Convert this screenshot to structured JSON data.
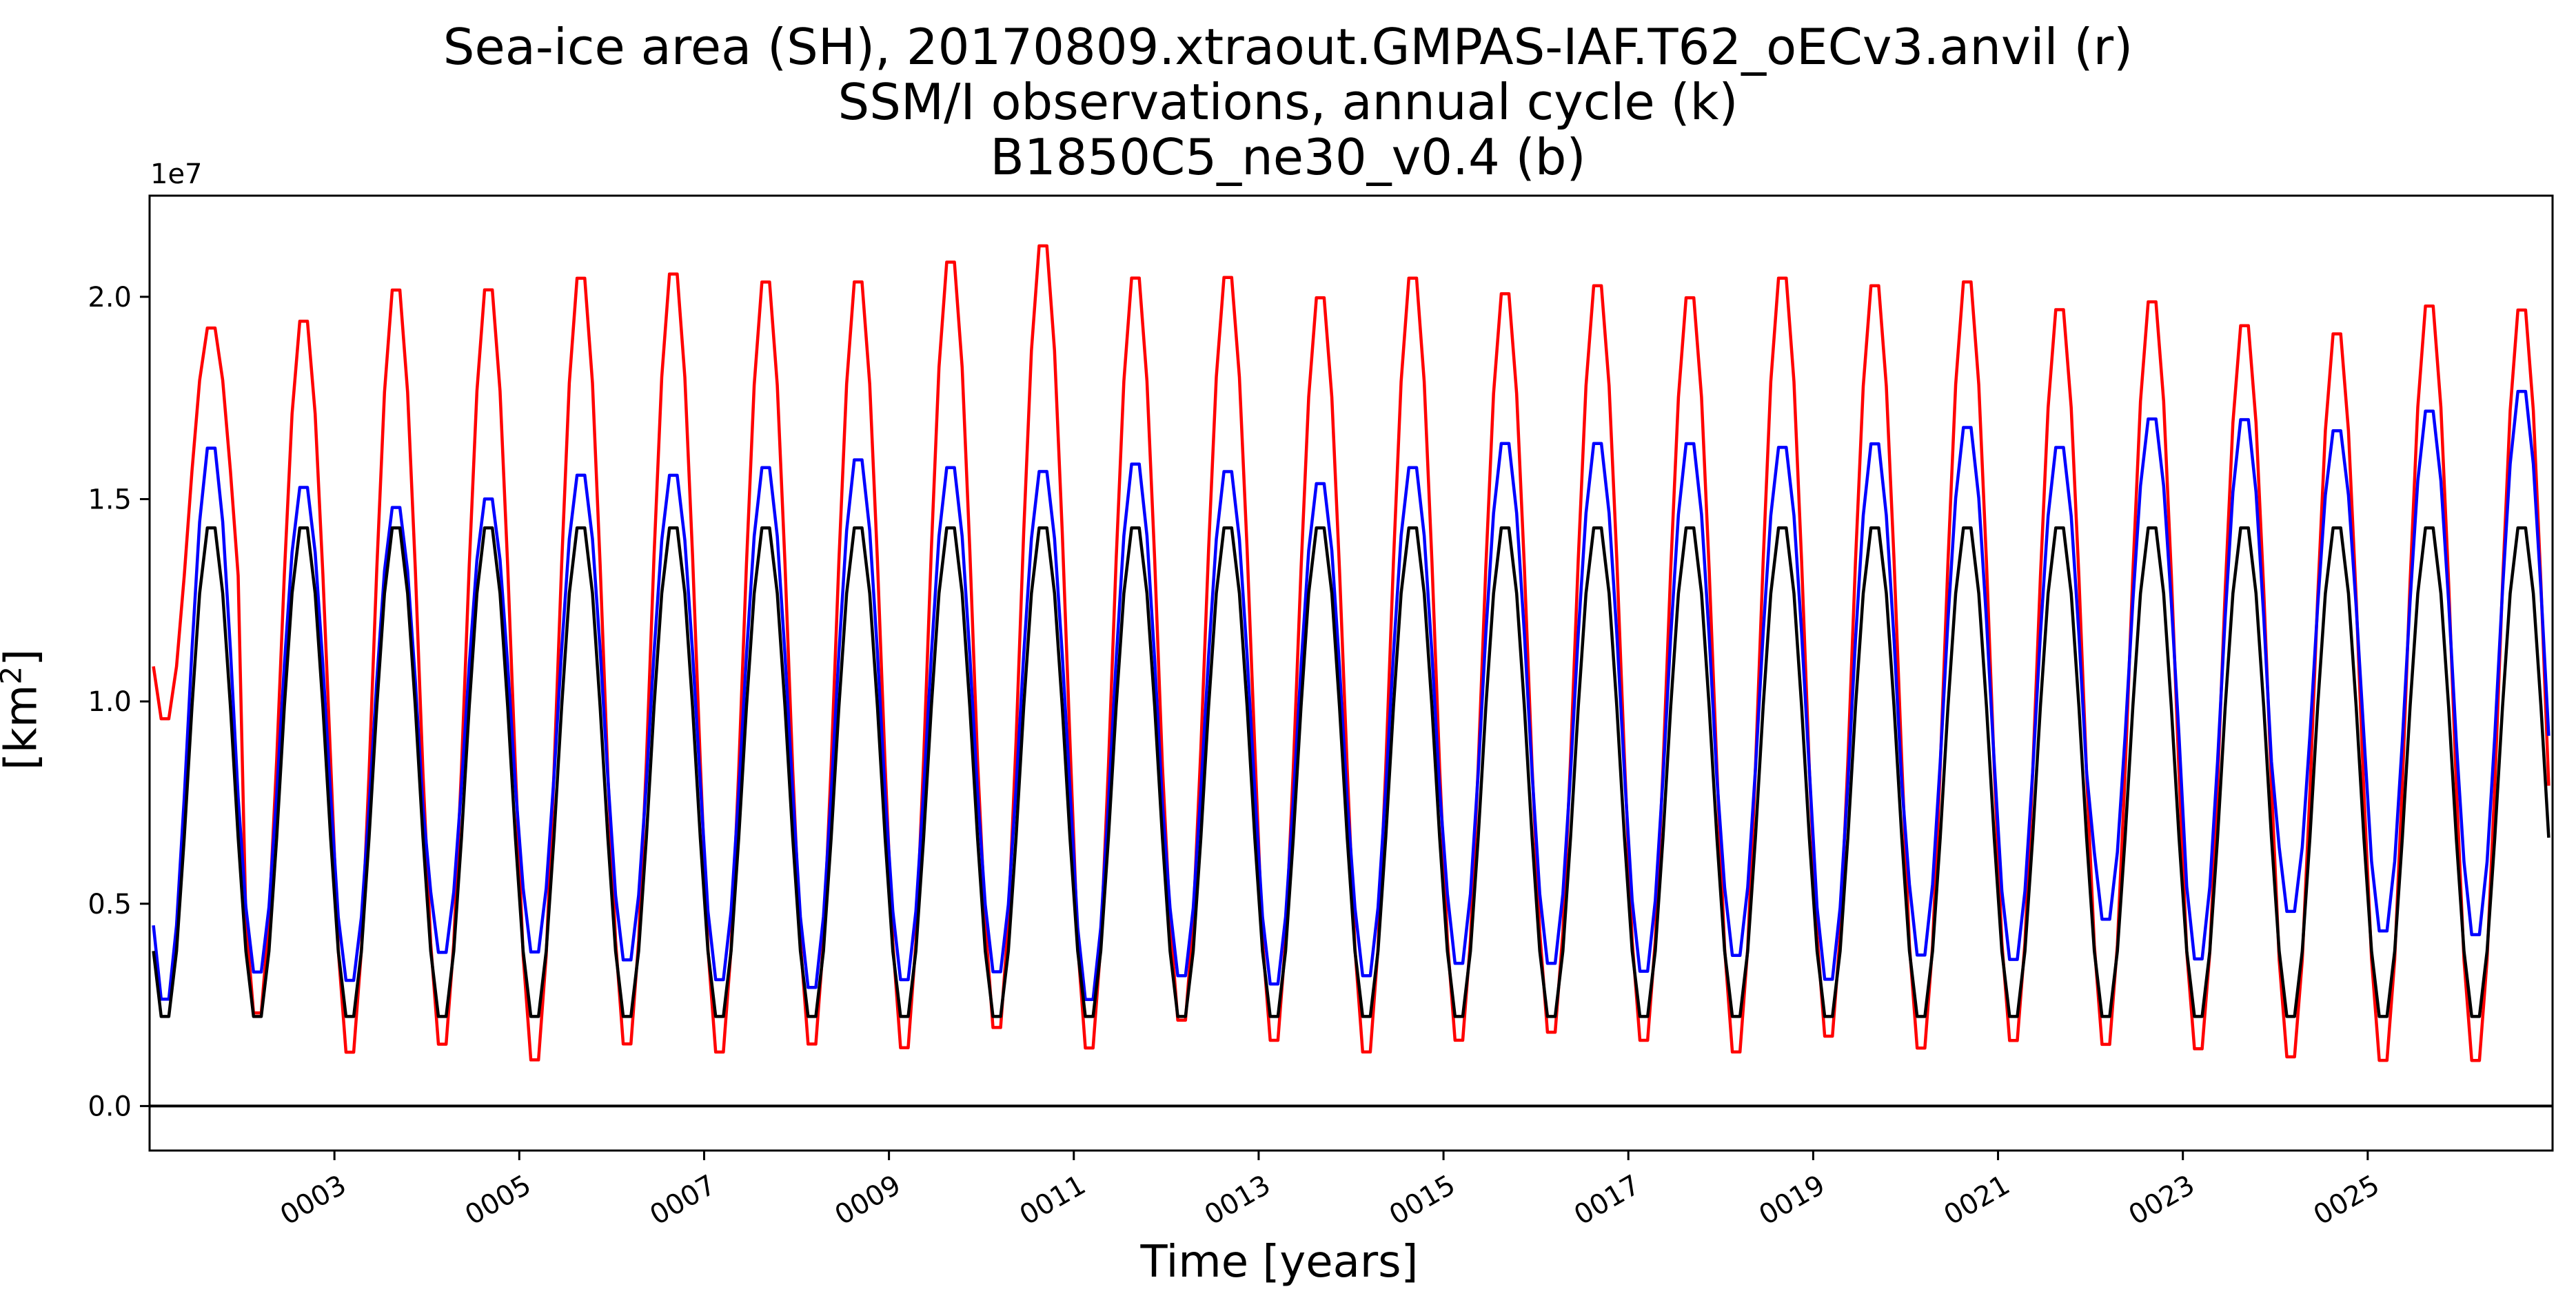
{
  "chart_data": {
    "type": "line",
    "title_lines": [
      "Sea-ice area (SH), 20170809.xtraout.GMPAS-IAF.T62_oECv3.anvil (r)",
      "SSM/I observations, annual cycle (k)",
      "B1850C5_ne30_v0.4 (b)"
    ],
    "xlabel": "Time [years]",
    "ylabel_base": "[km",
    "ylabel_sup": "2",
    "ylabel_close": "]",
    "y_offset_text": "1e7",
    "x_ticks": [
      3,
      5,
      7,
      9,
      11,
      13,
      15,
      17,
      19,
      21,
      23,
      25
    ],
    "x_tick_labels": [
      "0003",
      "0005",
      "0007",
      "0009",
      "0011",
      "0013",
      "0015",
      "0017",
      "0019",
      "0021",
      "0023",
      "0025"
    ],
    "y_ticks": [
      0.0,
      0.5,
      1.0,
      1.5,
      2.0
    ],
    "y_tick_labels": [
      "0.0",
      "0.5",
      "1.0",
      "1.5",
      "2.0"
    ],
    "xlim": [
      1.0,
      27.0
    ],
    "ylim": [
      -0.11,
      2.25
    ],
    "y_scale": 10000000,
    "hline_y": 0.0,
    "grid": false,
    "months_per_year": 12,
    "series": [
      {
        "name": "20170809.xtraout.GMPAS-IAF.T62_oECv3.anvil (r)",
        "color": "#ff0000",
        "start_x": 1.0,
        "monthly_max": [
          1.94,
          1.97,
          2.05,
          2.05,
          2.08,
          2.09,
          2.07,
          2.07,
          2.12,
          2.16,
          2.08,
          2.08,
          2.03,
          2.08,
          2.04,
          2.06,
          2.03,
          2.08,
          2.06,
          2.07,
          2.0,
          2.02,
          1.96,
          1.94,
          2.01,
          2.0
        ],
        "monthly_min": [
          0.94,
          0.2,
          0.1,
          0.12,
          0.08,
          0.12,
          0.1,
          0.12,
          0.11,
          0.16,
          0.11,
          0.18,
          0.13,
          0.1,
          0.13,
          0.15,
          0.13,
          0.1,
          0.14,
          0.11,
          0.13,
          0.12,
          0.11,
          0.09,
          0.08,
          0.08
        ]
      },
      {
        "name": "B1850C5_ne30_v0.4 (b)",
        "color": "#0000ff",
        "start_x": 1.0,
        "monthly_max": [
          1.65,
          1.55,
          1.5,
          1.52,
          1.58,
          1.58,
          1.6,
          1.62,
          1.6,
          1.59,
          1.61,
          1.59,
          1.56,
          1.6,
          1.66,
          1.66,
          1.66,
          1.65,
          1.66,
          1.7,
          1.65,
          1.72,
          1.72,
          1.69,
          1.74,
          1.79
        ],
        "monthly_min": [
          0.24,
          0.31,
          0.29,
          0.36,
          0.36,
          0.34,
          0.29,
          0.27,
          0.29,
          0.31,
          0.24,
          0.3,
          0.28,
          0.3,
          0.33,
          0.33,
          0.31,
          0.35,
          0.29,
          0.35,
          0.34,
          0.44,
          0.34,
          0.46,
          0.41,
          0.4
        ]
      },
      {
        "name": "SSM/I observations, annual cycle (k)",
        "color": "#000000",
        "start_x": 1.0,
        "monthly_max": [
          1.45,
          1.45,
          1.45,
          1.45,
          1.45,
          1.45,
          1.45,
          1.45,
          1.45,
          1.45,
          1.45,
          1.45,
          1.45,
          1.45,
          1.45,
          1.45,
          1.45,
          1.45,
          1.45,
          1.45,
          1.45,
          1.45,
          1.45,
          1.45,
          1.45,
          1.45
        ],
        "monthly_min": [
          0.2,
          0.2,
          0.2,
          0.2,
          0.2,
          0.2,
          0.2,
          0.2,
          0.2,
          0.2,
          0.2,
          0.2,
          0.2,
          0.2,
          0.2,
          0.2,
          0.2,
          0.2,
          0.2,
          0.2,
          0.2,
          0.2,
          0.2,
          0.2,
          0.2,
          0.2
        ]
      }
    ]
  }
}
